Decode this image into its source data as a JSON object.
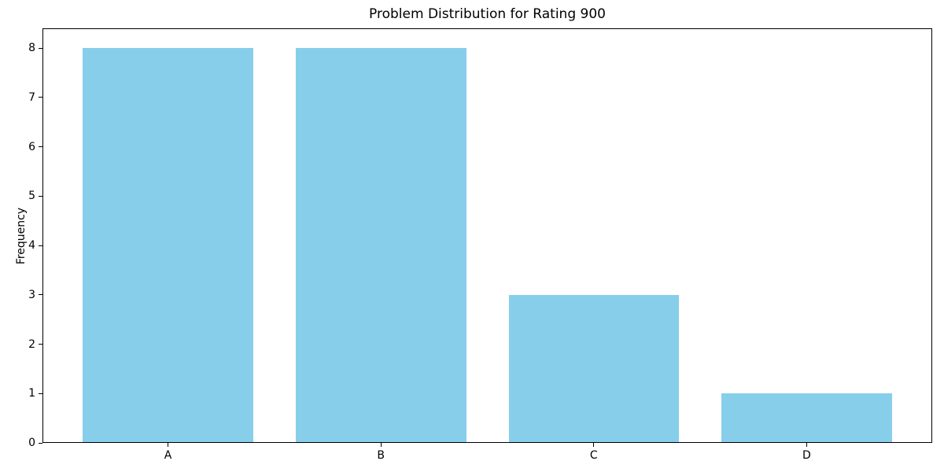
{
  "chart_data": {
    "type": "bar",
    "title": "Problem Distribution for Rating 900",
    "xlabel": "",
    "ylabel": "Frequency",
    "categories": [
      "A",
      "B",
      "C",
      "D"
    ],
    "values": [
      8,
      8,
      3,
      1
    ],
    "yticks": [
      0,
      1,
      2,
      3,
      4,
      5,
      6,
      7,
      8
    ],
    "ylim": [
      0,
      8.4
    ],
    "bar_color": "#87CEEB",
    "axis_color": "#000000",
    "background_color": "#ffffff",
    "grid": false,
    "legend_position": "none",
    "bar_width": 0.8
  }
}
